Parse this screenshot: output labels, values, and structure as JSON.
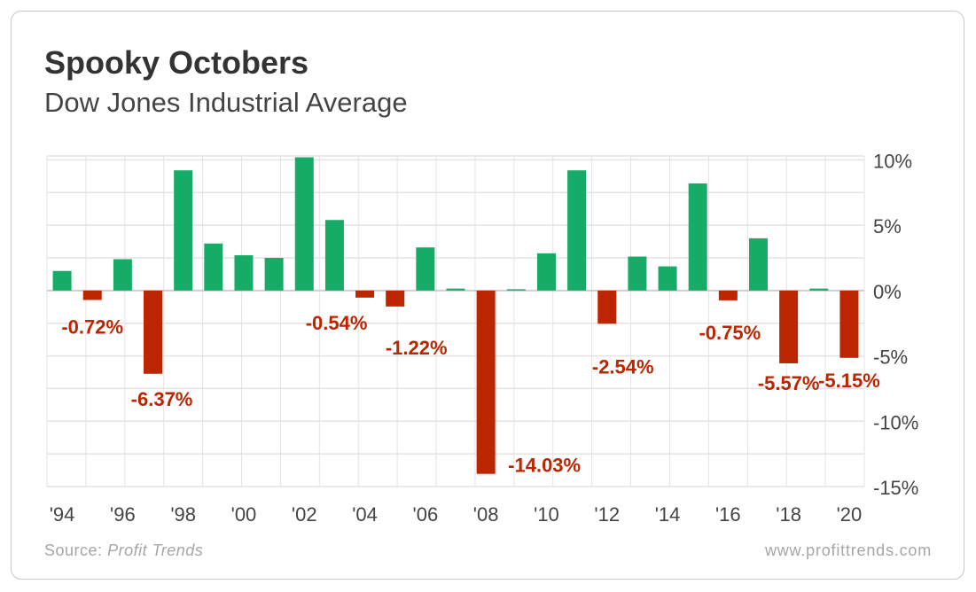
{
  "header": {
    "title": "Spooky Octobers",
    "subtitle": "Dow Jones Industrial Average"
  },
  "footer": {
    "source_label": "Source:",
    "source_name": "Profit Trends",
    "website": "www.profittrends.com"
  },
  "colors": {
    "positive": "#17ab68",
    "negative": "#bb2500",
    "label": "#bb2500",
    "grid": "#e3e3e3",
    "axis_text": "#444444"
  },
  "chart_data": {
    "type": "bar",
    "title": "Spooky Octobers",
    "subtitle": "Dow Jones Industrial Average",
    "categories": [
      "'94",
      "'95",
      "'96",
      "'97",
      "'98",
      "'99",
      "'00",
      "'01",
      "'02",
      "'03",
      "'04",
      "'05",
      "'06",
      "'07",
      "'08",
      "'09",
      "'10",
      "'11",
      "'12",
      "'13",
      "'14",
      "'15",
      "'16",
      "'17",
      "'18",
      "'19",
      "'20"
    ],
    "values": [
      1.5,
      -0.72,
      2.4,
      -6.37,
      9.2,
      3.6,
      2.7,
      2.5,
      10.2,
      5.4,
      -0.54,
      -1.22,
      3.3,
      0.15,
      -14.03,
      0.1,
      2.85,
      9.2,
      -2.54,
      2.6,
      1.85,
      8.2,
      -0.75,
      4.0,
      -5.57,
      0.15,
      -5.15
    ],
    "data_labels": {
      "'95": "-0.72%",
      "'97": "-6.37%",
      "'04": "-0.54%",
      "'05": "-1.22%",
      "'08": "-14.03%",
      "'12": "-2.54%",
      "'16": "-0.75%",
      "'18": "-5.57%",
      "'20": "-5.15%"
    },
    "x_tick_labels": [
      "'94",
      "'96",
      "'98",
      "'00",
      "'02",
      "'04",
      "'06",
      "'08",
      "'10",
      "'12",
      "'14",
      "'16",
      "'18",
      "'20"
    ],
    "y_ticks": [
      10,
      5,
      0,
      -5,
      -10,
      -15
    ],
    "y_tick_labels": [
      "10%",
      "5%",
      "0%",
      "-5%",
      "-10%",
      "-15%"
    ],
    "ylim": [
      -15,
      10.3
    ],
    "y_axis_position": "right",
    "grid": true,
    "legend": "none"
  }
}
